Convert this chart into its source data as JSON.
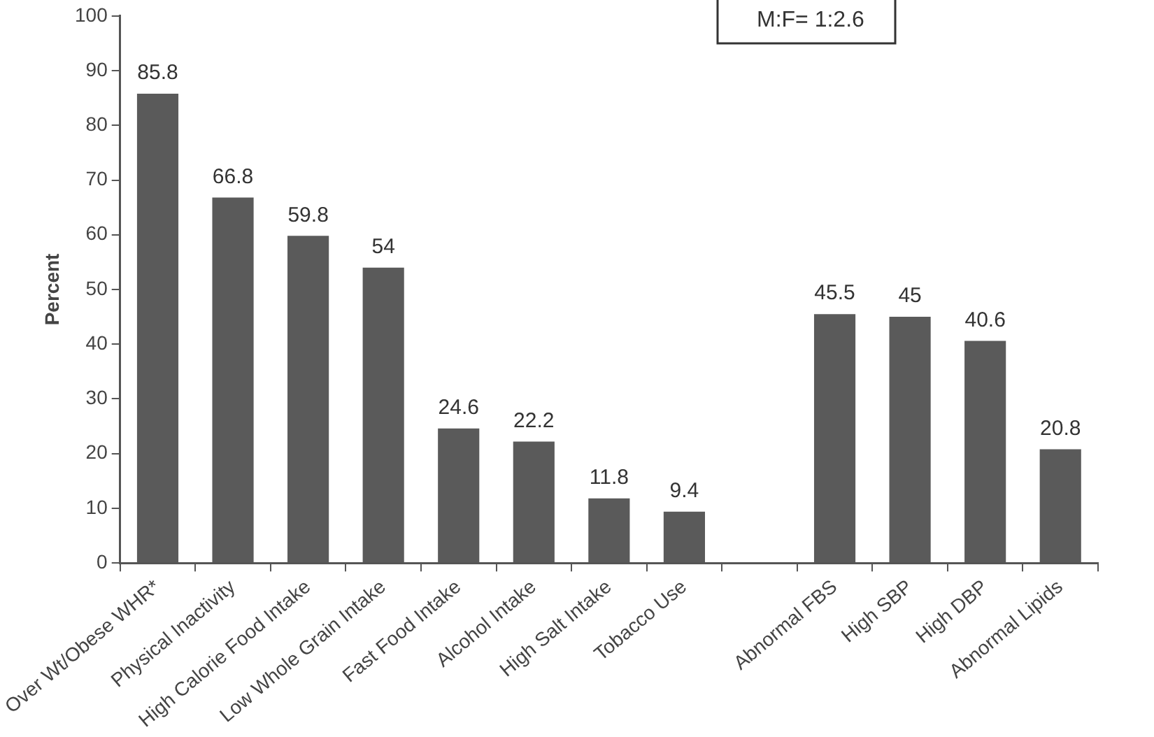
{
  "chart_data": {
    "type": "bar",
    "ylabel": "Percent",
    "categories": [
      "Over Wt/Obese WHR*",
      "Physical Inactivity",
      "High Calorie Food Intake",
      "Low Whole Grain Intake",
      "Fast Food Intake",
      "Alcohol Intake",
      "High Salt Intake",
      "Tobacco Use",
      null,
      "Abnormal FBS",
      "High SBP",
      "High DBP",
      "Abnormal Lipids"
    ],
    "values": [
      85.8,
      66.8,
      59.8,
      54,
      24.6,
      22.2,
      11.8,
      9.4,
      null,
      45.5,
      45,
      40.6,
      20.8
    ],
    "color": "#5a5a5a",
    "ylim": [
      0,
      100
    ],
    "yticks": [
      0,
      10,
      20,
      30,
      40,
      50,
      60,
      70,
      80,
      90,
      100
    ],
    "data_labels": true,
    "annotations": [
      "M:F= 1:2.6"
    ]
  }
}
